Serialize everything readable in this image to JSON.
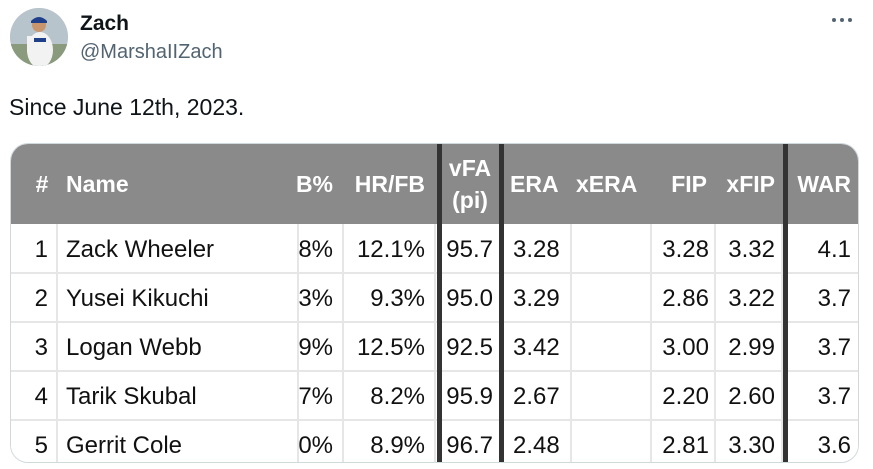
{
  "tweet": {
    "user_name": "Zach",
    "handle": "@MarshaIIZach",
    "text": "Since June 12th, 2023.",
    "more_icon": "more-horizontal-icon"
  },
  "table": {
    "columns": [
      "#",
      "Name",
      "B%",
      "HR/FB",
      "vFA (pi)",
      "ERA",
      "xERA",
      "FIP",
      "xFIP",
      "WAR"
    ],
    "header_cells": {
      "rank": "#",
      "name": "Name",
      "cut_pct": "B%",
      "hr_fb": "HR/FB",
      "vfa_line1": "vFA",
      "vfa_line2": "(pi)",
      "era": "ERA",
      "xera": "xERA",
      "fip": "FIP",
      "xfip": "xFIP",
      "war": "WAR"
    },
    "rows": [
      {
        "rank": "1",
        "name": "Zack Wheeler",
        "cut_pct": "8%",
        "hr_fb": "12.1%",
        "vfa": "95.7",
        "era": "3.28",
        "xera": "",
        "fip": "3.28",
        "xfip": "3.32",
        "war": "4.1"
      },
      {
        "rank": "2",
        "name": "Yusei Kikuchi",
        "cut_pct": "3%",
        "hr_fb": "9.3%",
        "vfa": "95.0",
        "era": "3.29",
        "xera": "",
        "fip": "2.86",
        "xfip": "3.22",
        "war": "3.7"
      },
      {
        "rank": "3",
        "name": "Logan Webb",
        "cut_pct": "9%",
        "hr_fb": "12.5%",
        "vfa": "92.5",
        "era": "3.42",
        "xera": "",
        "fip": "3.00",
        "xfip": "2.99",
        "war": "3.7"
      },
      {
        "rank": "4",
        "name": "Tarik Skubal",
        "cut_pct": "7%",
        "hr_fb": "8.2%",
        "vfa": "95.9",
        "era": "2.67",
        "xera": "",
        "fip": "2.20",
        "xfip": "2.60",
        "war": "3.7"
      },
      {
        "rank": "5",
        "name": "Gerrit Cole",
        "cut_pct": "0%",
        "hr_fb": "8.9%",
        "vfa": "96.7",
        "era": "2.48",
        "xera": "",
        "fip": "2.81",
        "xfip": "3.30",
        "war": "3.6"
      }
    ],
    "colors": {
      "header_bg": "#8a8a8a",
      "header_text": "#ffffff",
      "row_bg": "#ffffff",
      "cell_border": "#e6e6e6",
      "separator": "#333333",
      "cell_text": "#111111"
    }
  }
}
